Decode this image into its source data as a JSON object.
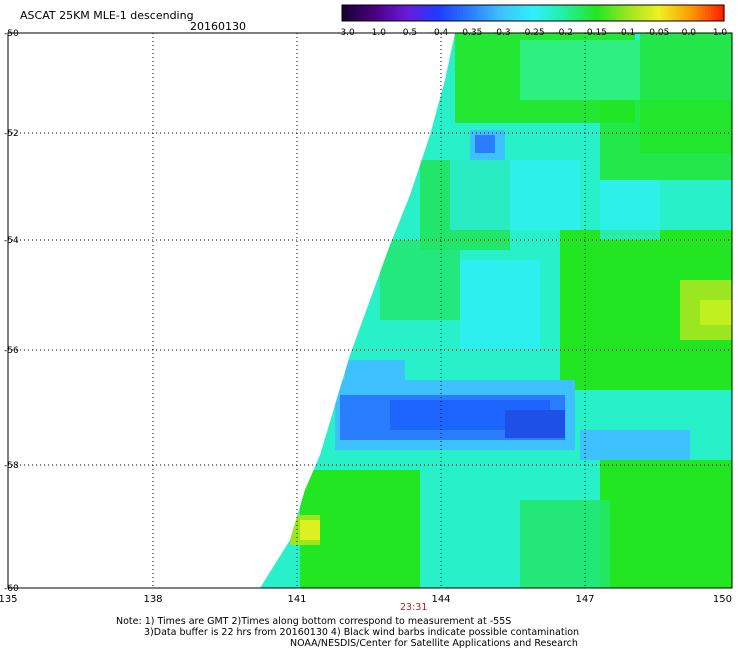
{
  "header": {
    "title": "ASCAT 25KM MLE-1 descending",
    "date": "20160130"
  },
  "colorbar": {
    "labels": [
      "-3.0",
      "-1.0",
      "-0.5",
      "-0.4",
      "-0.35",
      "-0.3",
      "-0.25",
      "-0.2",
      "-0.15",
      "-0.1",
      "-0.05",
      "0.0",
      "1.0"
    ],
    "colors": [
      "#1a0033",
      "#4b0082",
      "#6a1ad8",
      "#1e3cff",
      "#2a7dff",
      "#3ec2ff",
      "#2ef0ff",
      "#22f0a0",
      "#22e622",
      "#9ae620",
      "#f0f020",
      "#ff9a00",
      "#ff2000"
    ]
  },
  "axes": {
    "x_ticks": [
      "135",
      "138",
      "141",
      "144",
      "147",
      "150"
    ],
    "y_ticks": [
      "-50",
      "-52",
      "-54",
      "-56",
      "-58",
      "-60"
    ],
    "time_label": "23:31"
  },
  "notes": {
    "line1": "Note: 1) Times are GMT 2)Times along bottom correspond to measurement at -55S",
    "line2": "3)Data buffer is 22 hrs from 20160130 4) Black wind barbs indicate possible contamination",
    "line3": "NOAA/NESDIS/Center for Satellite Applications and Research"
  }
}
